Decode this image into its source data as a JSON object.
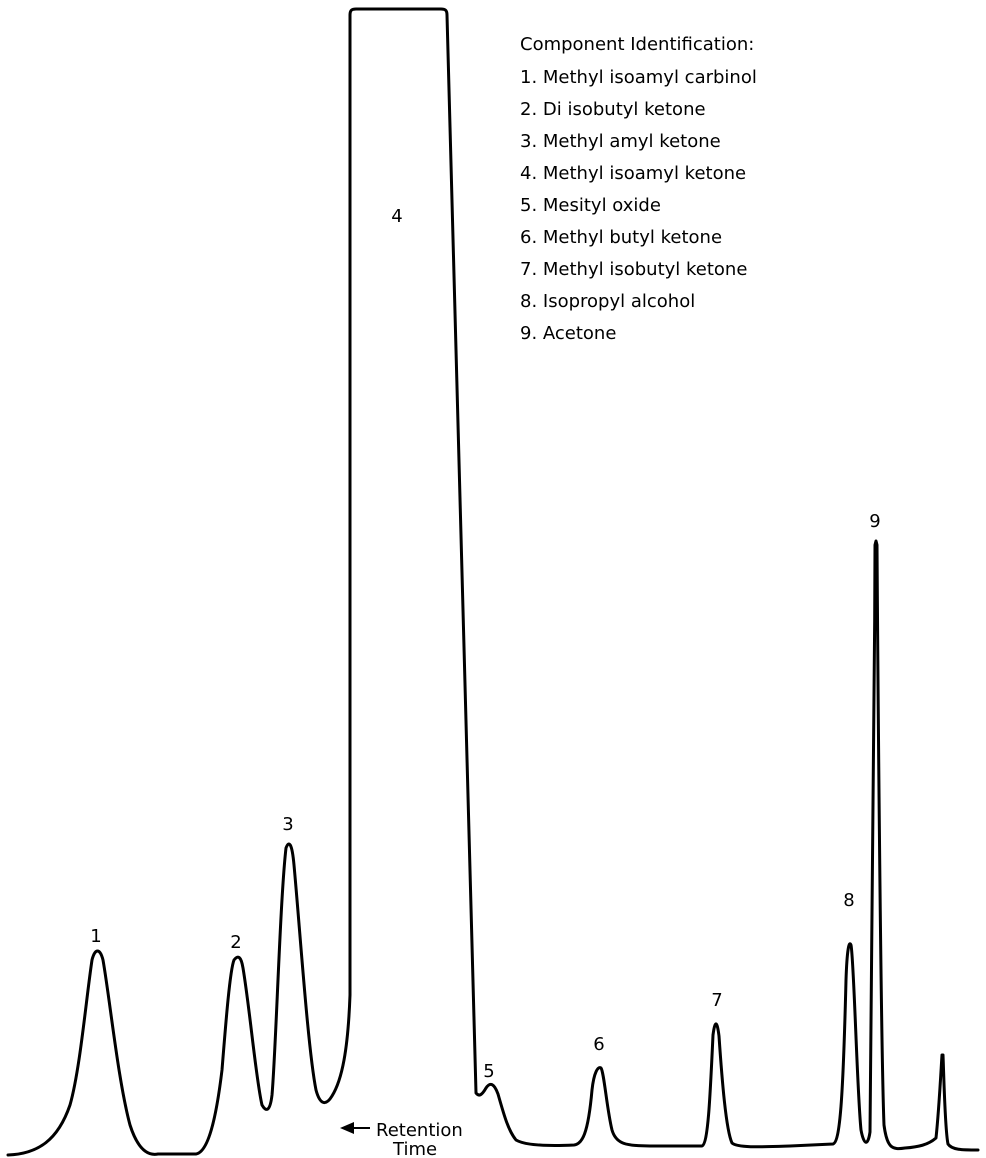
{
  "chart_data": {
    "type": "line",
    "title": "",
    "xlabel": "",
    "ylabel": "",
    "grid": false,
    "legend_placement": "top-right",
    "legend": {
      "title": "Component Identification:",
      "items": [
        "1.  Methyl isoamyl carbinol",
        "2.  Di isobutyl ketone",
        "3.  Methyl amyl ketone",
        "4.  Methyl isoamyl ketone",
        "5.  Mesityl oxide",
        "6.  Methyl butyl ketone",
        "7.  Methyl isobutyl ketone",
        "8.  Isopropyl alcohol",
        "9.  Acetone"
      ]
    },
    "peaks": [
      {
        "label": "1"
      },
      {
        "label": "2"
      },
      {
        "label": "3"
      },
      {
        "label": "4"
      },
      {
        "label": "5"
      },
      {
        "label": "6"
      },
      {
        "label": "7"
      },
      {
        "label": "8"
      },
      {
        "label": "9"
      }
    ],
    "annotation": {
      "line1": "Retention",
      "line2": "Time"
    },
    "colors": {
      "trace": "#000000",
      "background": "#ffffff"
    }
  }
}
